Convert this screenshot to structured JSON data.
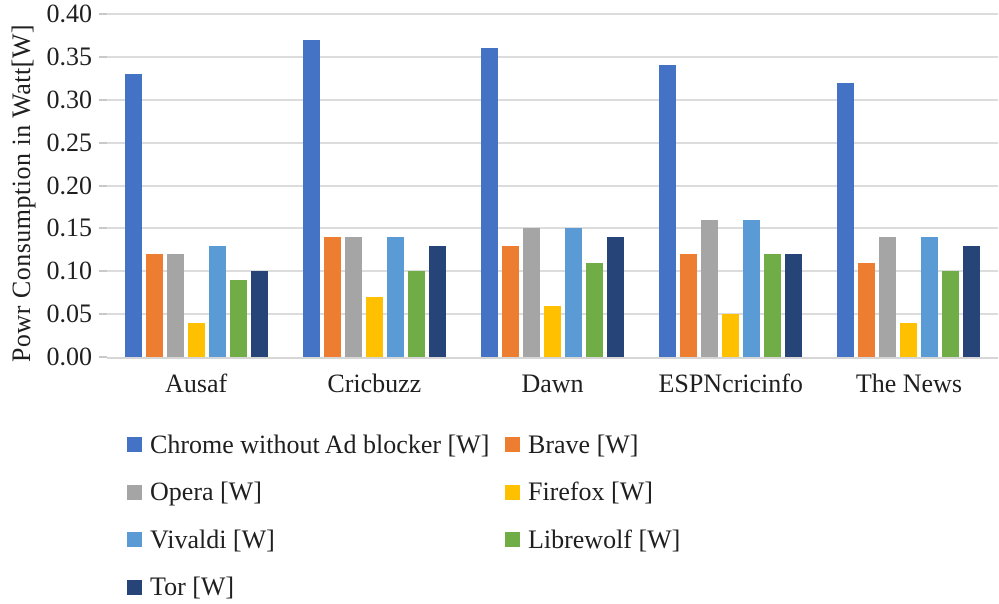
{
  "chart_data": {
    "type": "bar",
    "title": "",
    "xlabel": "",
    "ylabel": "Powr Consumption in Watt[W]",
    "ylim": [
      0,
      0.4
    ],
    "y_ticks": [
      "0.40",
      "0.35",
      "0.30",
      "0.25",
      "0.20",
      "0.15",
      "0.10",
      "0.05",
      "0.00"
    ],
    "grid": "horizontal",
    "legend_position": "bottom",
    "categories": [
      "Ausaf",
      "Cricbuzz",
      "Dawn",
      "ESPNcricinfo",
      "The News"
    ],
    "series": [
      {
        "name": "Chrome without Ad blocker [W]",
        "color": "#4472C4",
        "values": [
          0.33,
          0.37,
          0.36,
          0.34,
          0.32
        ]
      },
      {
        "name": "Brave [W]",
        "color": "#ED7D31",
        "values": [
          0.12,
          0.14,
          0.13,
          0.12,
          0.11
        ]
      },
      {
        "name": "Opera [W]",
        "color": "#A5A5A5",
        "values": [
          0.12,
          0.14,
          0.15,
          0.16,
          0.14
        ]
      },
      {
        "name": "Firefox [W]",
        "color": "#FFC000",
        "values": [
          0.04,
          0.07,
          0.06,
          0.05,
          0.04
        ]
      },
      {
        "name": "Vivaldi [W]",
        "color": "#5B9BD5",
        "values": [
          0.13,
          0.14,
          0.15,
          0.16,
          0.14
        ]
      },
      {
        "name": "Librewolf [W]",
        "color": "#70AD47",
        "values": [
          0.09,
          0.1,
          0.11,
          0.12,
          0.1
        ]
      },
      {
        "name": "Tor [W]",
        "color": "#264478",
        "values": [
          0.1,
          0.13,
          0.14,
          0.12,
          0.13
        ]
      }
    ],
    "legend_row_pairs": [
      [
        0,
        1
      ],
      [
        2,
        3
      ],
      [
        4,
        5
      ],
      [
        6
      ]
    ]
  },
  "colors": {
    "background": "#FFFFFF",
    "gridline": "#DCDCDC",
    "axis_line": "#D6D6D6",
    "text": "#1F1F1F"
  }
}
